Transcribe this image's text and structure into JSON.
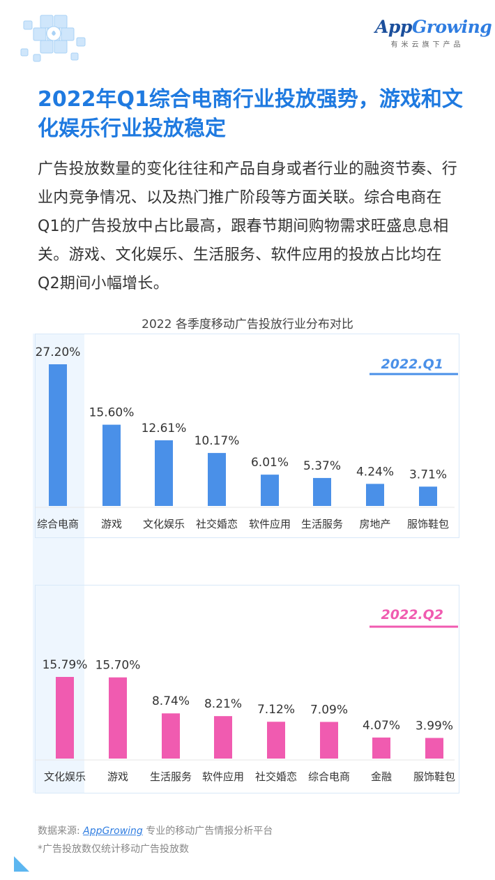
{
  "header": {
    "logo_text_a": "App",
    "logo_text_b": "Growing",
    "logo_sub": "有米云旗下产品",
    "title": "2022年Q1综合电商行业投放强势，游戏和文化娱乐行业投放稳定",
    "intro": "广告投放数量的变化往往和产品自身或者行业的融资节奏、行业内竞争情况、以及热门推广阶段等方面关联。综合电商在Q1的广告投放中占比最高，跟春节期间购物需求旺盛息息相关。游戏、文化娱乐、生活服务、软件应用的投放占比均在Q2期间小幅增长。"
  },
  "chart_title": "2022 各季度移动广告投放行业分布对比",
  "chart_data": [
    {
      "type": "bar",
      "title": "2022 各季度移动广告投放行业分布对比",
      "series": [
        {
          "name": "2022.Q1",
          "values": [
            27.2,
            15.6,
            12.61,
            10.17,
            6.01,
            5.37,
            4.24,
            3.71
          ]
        }
      ],
      "categories": [
        "综合电商",
        "游戏",
        "文化娱乐",
        "社交婚恋",
        "软件应用",
        "生活服务",
        "房地产",
        "服饰鞋包"
      ],
      "data_labels": [
        "27.20%",
        "15.60%",
        "12.61%",
        "10.17%",
        "6.01%",
        "5.37%",
        "4.24%",
        "3.71%"
      ],
      "legend": "top-right",
      "highlighted_category": "综合电商",
      "color": "#4a90e8"
    },
    {
      "type": "bar",
      "series": [
        {
          "name": "2022.Q2",
          "values": [
            15.79,
            15.7,
            8.74,
            8.21,
            7.12,
            7.09,
            4.07,
            3.99
          ]
        }
      ],
      "categories": [
        "文化娱乐",
        "游戏",
        "生活服务",
        "软件应用",
        "社交婚恋",
        "综合电商",
        "金融",
        "服饰鞋包"
      ],
      "data_labels": [
        "15.79%",
        "15.70%",
        "8.74%",
        "8.21%",
        "7.12%",
        "7.09%",
        "4.07%",
        "3.99%"
      ],
      "legend": "top-right",
      "color": "#f05bb0"
    }
  ],
  "footer": {
    "source_label": "数据来源: ",
    "source_link": "AppGrowing",
    "source_desc": " 专业的移动广告情报分析平台",
    "note": "*广告投放数仅统计移动广告投放数"
  }
}
